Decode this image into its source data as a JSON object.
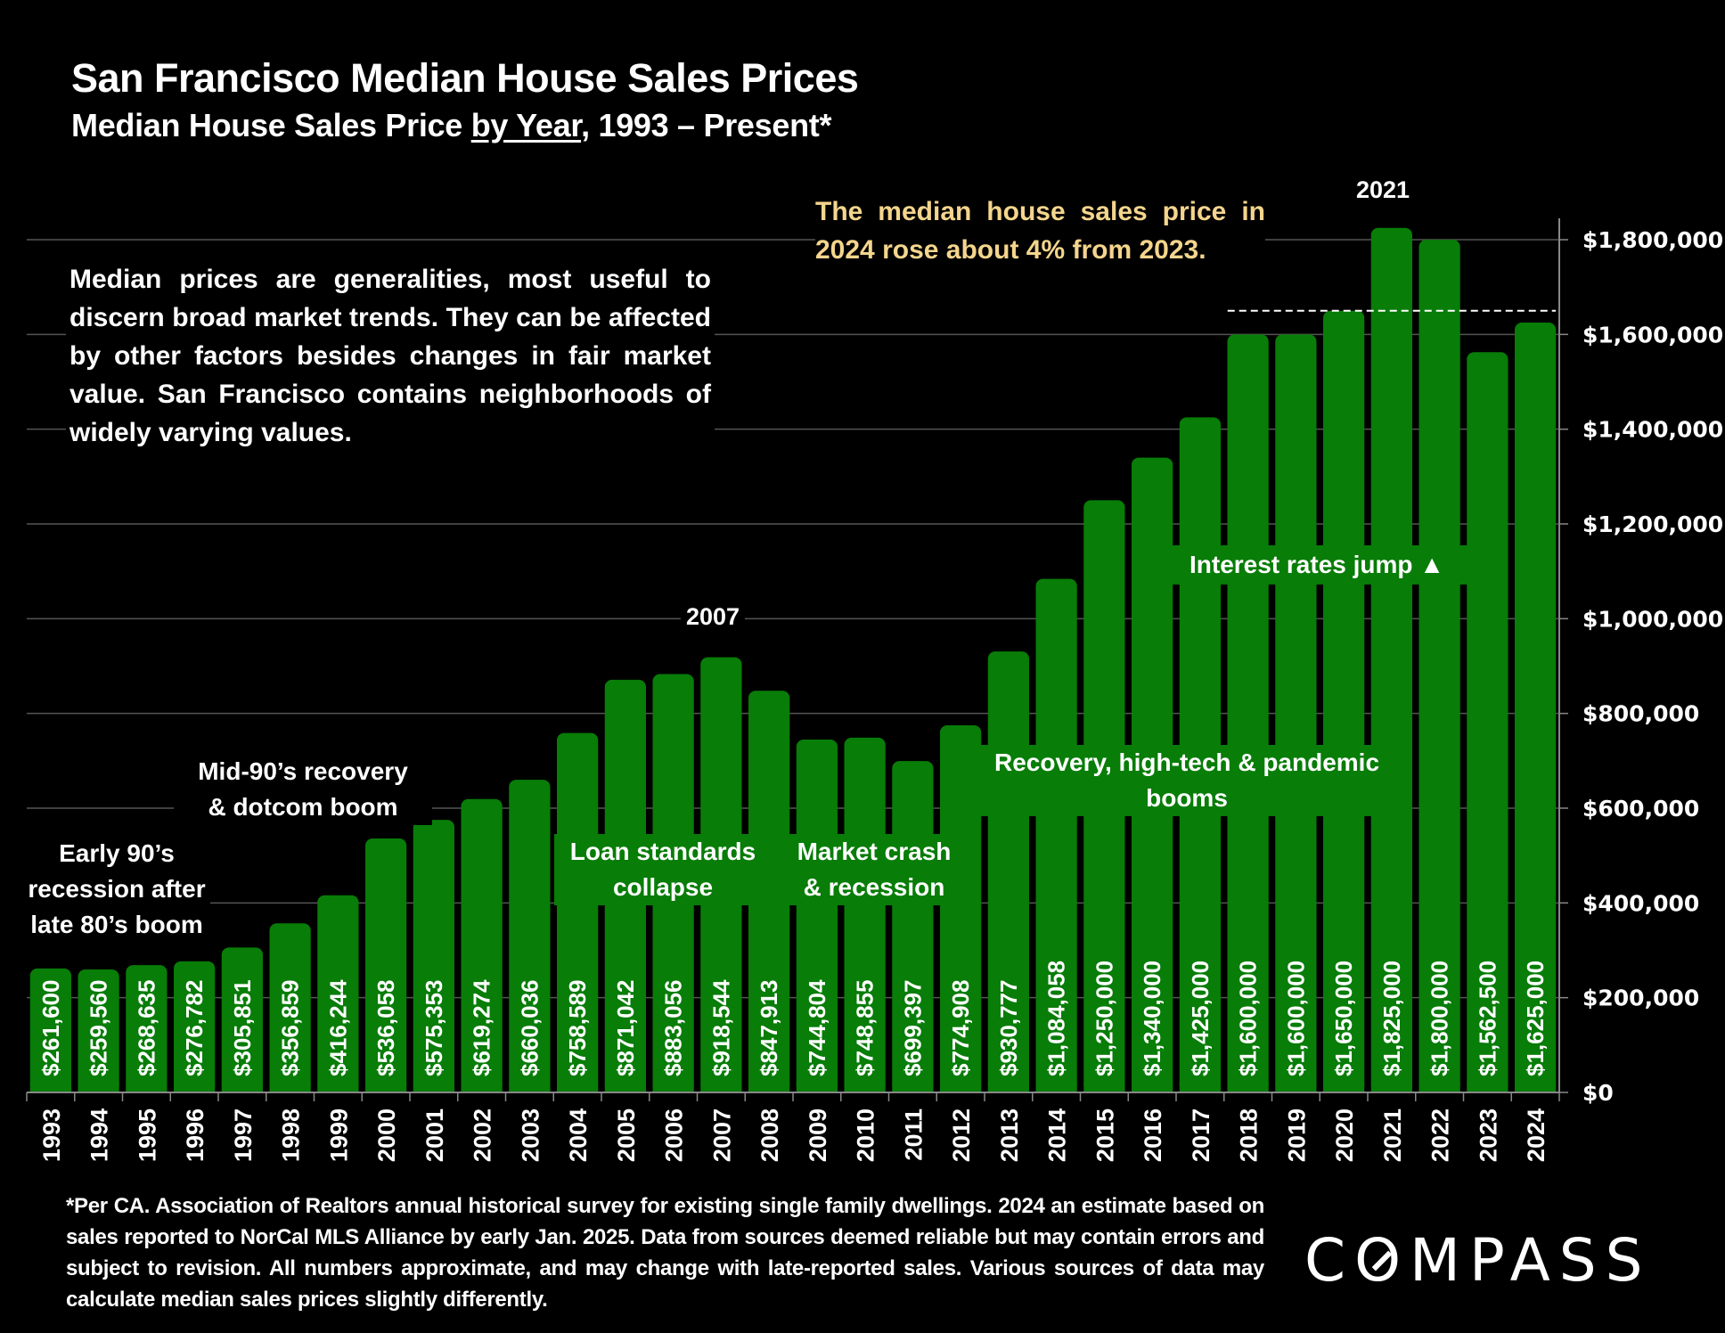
{
  "header": {
    "title": "San Francisco Median House Sales Prices",
    "subtitle_before": "Median House Sales Price ",
    "subtitle_underlined": "by Year",
    "subtitle_after": ", 1993 – Present*"
  },
  "chart_data": {
    "type": "bar",
    "title": "San Francisco Median House Sales Prices",
    "subtitle": "Median House Sales Price by Year, 1993 – Present*",
    "xlabel": "",
    "ylabel": "",
    "categories": [
      "1993",
      "1994",
      "1995",
      "1996",
      "1997",
      "1998",
      "1999",
      "2000",
      "2001",
      "2002",
      "2003",
      "2004",
      "2005",
      "2006",
      "2007",
      "2008",
      "2009",
      "2010",
      "2011",
      "2012",
      "2013",
      "2014",
      "2015",
      "2016",
      "2017",
      "2018",
      "2019",
      "2020",
      "2021",
      "2022",
      "2023",
      "2024"
    ],
    "values": [
      261600,
      259560,
      268635,
      276782,
      305851,
      356859,
      416244,
      536058,
      575353,
      619274,
      660036,
      758589,
      871042,
      883056,
      918544,
      847913,
      744804,
      748855,
      699397,
      774908,
      930777,
      1084058,
      1250000,
      1340000,
      1425000,
      1600000,
      1600000,
      1650000,
      1825000,
      1800000,
      1562500,
      1625000
    ],
    "value_labels": [
      "$261,600",
      "$259,560",
      "$268,635",
      "$276,782",
      "$305,851",
      "$356,859",
      "$416,244",
      "$536,058",
      "$575,353",
      "$619,274",
      "$660,036",
      "$758,589",
      "$871,042",
      "$883,056",
      "$918,544",
      "$847,913",
      "$744,804",
      "$748,855",
      "$699,397",
      "$774,908",
      "$930,777",
      "$1,084,058",
      "$1,250,000",
      "$1,340,000",
      "$1,425,000",
      "$1,600,000",
      "$1,600,000",
      "$1,650,000",
      "$1,825,000",
      "$1,800,000",
      "$1,562,500",
      "$1,625,000"
    ],
    "ylim": [
      0,
      1800000
    ],
    "y_axis_position": "right",
    "y_ticks": [
      0,
      200000,
      400000,
      600000,
      800000,
      1000000,
      1200000,
      1400000,
      1600000,
      1800000
    ],
    "y_tick_labels": [
      "$0",
      "$200,000",
      "$400,000",
      "$600,000",
      "$800,000",
      "$1,000,000",
      "$1,200,000",
      "$1,400,000",
      "$1,600,000",
      "$1,800,000"
    ],
    "grid": true,
    "reference_line": {
      "value": 1650000,
      "style": "dashed",
      "from": "2018",
      "to": "2024"
    },
    "bar_color": "#087d08",
    "peak_labels": [
      {
        "category": "2007",
        "text": "2007"
      },
      {
        "category": "2021",
        "text": "2021"
      }
    ],
    "annotations": [
      {
        "text": "Early 90’s recession after late 80’s boom"
      },
      {
        "text": "Mid-90’s recovery & dotcom boom"
      },
      {
        "text": "Loan standards collapse"
      },
      {
        "text": "Market crash & recession"
      },
      {
        "text": "Recovery, high-tech & pandemic booms"
      },
      {
        "text": "Interest rates jump ▲"
      }
    ]
  },
  "notes": {
    "disclaimer": "Median prices are generalities, most useful to discern broad market trends. They can be affected by other factors besides changes in fair market value. San Francisco contains neighborhoods of widely varying values.",
    "callout": "The median house sales price in 2024 rose about 4% from 2023.",
    "callout_color": "#f4d58d"
  },
  "annotations": {
    "early90s_l1": "Early 90’s",
    "early90s_l2": "recession after",
    "early90s_l3": "late 80’s boom",
    "mid90s_l1": "Mid-90’s recovery",
    "mid90s_l2": "& dotcom boom",
    "loan_l1": "Loan standards",
    "loan_l2": "collapse",
    "crash_l1": "Market crash",
    "crash_l2": "& recession",
    "recovery_l1": "Recovery, high-tech & pandemic",
    "recovery_l2": "booms",
    "rates": "Interest rates jump ▲",
    "peak_2007": "2007",
    "peak_2021": "2021"
  },
  "footer": {
    "footnote": "*Per CA. Association of Realtors annual historical survey for existing single family dwellings. 2024 an estimate based on sales reported to NorCal MLS Alliance by early Jan. 2025. Data from sources deemed reliable but may contain errors and subject to revision. All numbers approximate, and may change with late-reported sales. Various sources of data may calculate median sales prices slightly differently.",
    "logo_c": "C",
    "logo_o": "O",
    "logo_rest": "MPASS"
  }
}
